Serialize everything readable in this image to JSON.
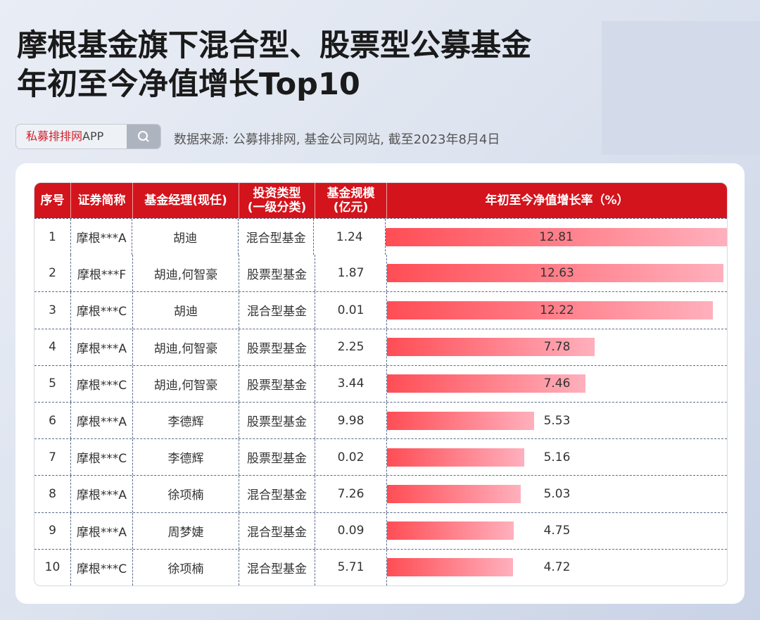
{
  "title": {
    "line1": "摩根基金旗下混合型、股票型公募基金",
    "line2": "年初至今净值增长Top10"
  },
  "search": {
    "brand_red": "私募排排网",
    "brand_suffix": "APP",
    "icon": "search-icon"
  },
  "source": "数据来源: 公募排排网, 基金公司网站, 截至2023年8月4日",
  "colors": {
    "header": "#d3141c",
    "bar_start": "#ff4d55",
    "bar_end": "#ffb0bd"
  },
  "chart_data": {
    "type": "table",
    "title": "年初至今净值增长率（%）",
    "columns": [
      "序号",
      "证券简称",
      "基金经理(现任)",
      "投资类型\n(一级分类)",
      "基金规模\n(亿元)",
      "年初至今净值增长率（%）"
    ],
    "xlim": [
      0,
      12.81
    ],
    "rows": [
      {
        "no": "1",
        "name": "摩根***A",
        "manager": "胡迪",
        "type": "混合型基金",
        "size": "1.24",
        "growth": 12.81
      },
      {
        "no": "2",
        "name": "摩根***F",
        "manager": "胡迪,何智豪",
        "type": "股票型基金",
        "size": "1.87",
        "growth": 12.63
      },
      {
        "no": "3",
        "name": "摩根***C",
        "manager": "胡迪",
        "type": "混合型基金",
        "size": "0.01",
        "growth": 12.22
      },
      {
        "no": "4",
        "name": "摩根***A",
        "manager": "胡迪,何智豪",
        "type": "股票型基金",
        "size": "2.25",
        "growth": 7.78
      },
      {
        "no": "5",
        "name": "摩根***C",
        "manager": "胡迪,何智豪",
        "type": "股票型基金",
        "size": "3.44",
        "growth": 7.46
      },
      {
        "no": "6",
        "name": "摩根***A",
        "manager": "李德辉",
        "type": "股票型基金",
        "size": "9.98",
        "growth": 5.53
      },
      {
        "no": "7",
        "name": "摩根***C",
        "manager": "李德辉",
        "type": "股票型基金",
        "size": "0.02",
        "growth": 5.16
      },
      {
        "no": "8",
        "name": "摩根***A",
        "manager": "徐项楠",
        "type": "混合型基金",
        "size": "7.26",
        "growth": 5.03
      },
      {
        "no": "9",
        "name": "摩根***A",
        "manager": "周梦婕",
        "type": "混合型基金",
        "size": "0.09",
        "growth": 4.75
      },
      {
        "no": "10",
        "name": "摩根***C",
        "manager": "徐项楠",
        "type": "混合型基金",
        "size": "5.71",
        "growth": 4.72
      }
    ]
  }
}
